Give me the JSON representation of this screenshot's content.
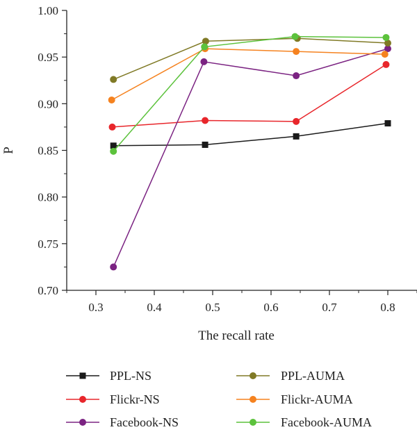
{
  "chart_data": {
    "type": "line",
    "title": "",
    "xlabel": "The recall rate",
    "ylabel": "P",
    "xlim": [
      0.25,
      0.85
    ],
    "ylim": [
      0.7,
      1.0
    ],
    "xticks": [
      0.3,
      0.4,
      0.5,
      0.6,
      0.7,
      0.8
    ],
    "yticks": [
      0.7,
      0.75,
      0.8,
      0.85,
      0.9,
      0.95,
      1.0
    ],
    "xtick_labels": [
      "0.3",
      "0.4",
      "0.5",
      "0.6",
      "0.7",
      "0.8"
    ],
    "ytick_labels": [
      "0.70",
      "0.75",
      "0.80",
      "0.85",
      "0.90",
      "0.95",
      "1.00"
    ],
    "grid": false,
    "legend_position": "bottom",
    "series": [
      {
        "name": "PPL-NS",
        "color": "#1a1a1a",
        "marker": "square",
        "x": [
          0.33,
          0.487,
          0.643,
          0.8
        ],
        "y": [
          0.855,
          0.856,
          0.865,
          0.879
        ]
      },
      {
        "name": "Flickr-NS",
        "color": "#e8262b",
        "marker": "circle",
        "x": [
          0.328,
          0.487,
          0.643,
          0.797
        ],
        "y": [
          0.875,
          0.882,
          0.881,
          0.942
        ]
      },
      {
        "name": "Facebook-NS",
        "color": "#7b2382",
        "marker": "circle",
        "x": [
          0.33,
          0.485,
          0.643,
          0.8
        ],
        "y": [
          0.725,
          0.945,
          0.93,
          0.959
        ]
      },
      {
        "name": "PPL-AUMA",
        "color": "#807a26",
        "marker": "circle",
        "x": [
          0.33,
          0.488,
          0.645,
          0.8
        ],
        "y": [
          0.926,
          0.967,
          0.97,
          0.965
        ]
      },
      {
        "name": "Flickr-AUMA",
        "color": "#f5821f",
        "marker": "circle",
        "x": [
          0.327,
          0.487,
          0.643,
          0.795
        ],
        "y": [
          0.904,
          0.959,
          0.956,
          0.953
        ]
      },
      {
        "name": "Facebook-AUMA",
        "color": "#5cc23c",
        "marker": "circle",
        "x": [
          0.33,
          0.486,
          0.641,
          0.797
        ],
        "y": [
          0.849,
          0.961,
          0.972,
          0.971
        ]
      }
    ]
  }
}
